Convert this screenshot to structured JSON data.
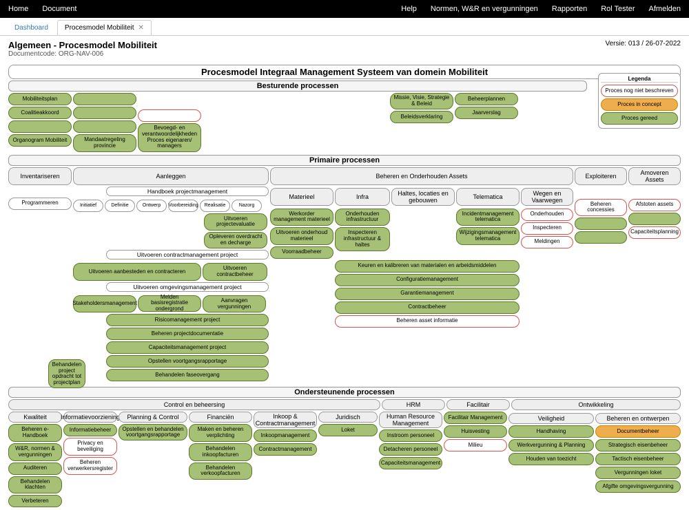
{
  "topnav": {
    "left": [
      "Home",
      "Document"
    ],
    "right": [
      "Help",
      "Normen, W&R en vergunningen",
      "Rapporten",
      "Rol Tester",
      "Afmelden"
    ]
  },
  "tabs": {
    "dashboard": "Dashboard",
    "active": "Procesmodel Mobiliteit"
  },
  "header": {
    "title": "Algemeen - Procesmodel Mobiliteit",
    "code": "Documentcode: ORG-NAV-006",
    "version": "Versie: 013 / 26-07-2022"
  },
  "diagram": {
    "main_title": "Procesmodel Integraal Management Systeem van domein Mobiliteit",
    "legend": {
      "title": "Legenda",
      "items": [
        {
          "label": "Proces nog niet beschreven",
          "style": "red"
        },
        {
          "label": "Proces in concept",
          "style": "orange"
        },
        {
          "label": "Proces gereed",
          "style": "green"
        }
      ]
    },
    "besturende": {
      "title": "Besturende processen",
      "col1": [
        "Mobiliteitsplan",
        "Coalitieakkoord",
        "",
        "Organogram Mobiliteit"
      ],
      "col2": [
        "",
        "",
        "",
        "Mandaatregeling provincie"
      ],
      "col3_red": "",
      "col3": "Bevoegd- en verantwoordelijkheden Proces eigenaren/ managers",
      "col4": [
        "Missie, Visie, Strategie & Beleid",
        "Beleidsverklaring"
      ],
      "col5": [
        "Beheerplannen",
        "Jaarverslag"
      ]
    },
    "primaire_title": "Primaire processen",
    "groups": {
      "inventariseren": "Inventariseren",
      "aanleggen": "Aanleggen",
      "beheren": "Beheren en Onderhouden Assets",
      "exploiteren": "Exploiteren",
      "amoveren": "Amoveren Assets"
    },
    "inventariseren_item": "Programmeren",
    "aanleggen": {
      "handboek": "Handboek projectmanagement",
      "phases": [
        "Initiatief",
        "Definitie",
        "Ontwerp",
        "Voorbereiding",
        "Realisatie",
        "Nazorg"
      ],
      "r1": [
        "Uitvoeren projectevaluatie"
      ],
      "r2": [
        "Opleveren overdracht en decharge"
      ],
      "contract_title": "Uitvoeren contractmanagement project",
      "contract_items": [
        "Uitvoeren aanbesteden en contracteren",
        "Uitvoeren contractbeheer"
      ],
      "omg_title": "Uitvoeren omgevingsmanagement project",
      "omg_items": [
        "Stakeholdersmanagement",
        "Melden basisregistratie ondergrond",
        "Aanvragen vergunningen"
      ],
      "bottom": [
        "Risicomanagement project",
        "Beheren projectdocumentatie",
        "Capaciteitsmanagement project",
        "Opstellen voortgangsrapportage",
        "Behandelen faseovergang"
      ],
      "side": "Behandelen project opdracht tot projectplan"
    },
    "beheren": {
      "cols": [
        "Materieel",
        "Infra",
        "Haltes, locaties en gebouwen",
        "Telematica",
        "Wegen en Vaarwegen"
      ],
      "materieel": [
        "Werkorder management materieel",
        "Uitvoeren onderhoud materieel",
        "Voorraadbeheer"
      ],
      "infra": [
        "Onderhouden infrastructuur",
        "Inspecteren infrastructuur & haltes"
      ],
      "telematica": [
        "Incidentmanagement telematica",
        "Wijzigingsmanagement telematica"
      ],
      "wegen": [
        "Onderhouden",
        "Inspecteren",
        "Meldingen"
      ],
      "wide": [
        "Keuren en kalibreren van materialen en arbeidsmiddelen",
        "Configuratiemanagement",
        "Garantiemanagement",
        "Contractbeheer"
      ],
      "wide_red": "Beheren asset informatie"
    },
    "exploiteren_items": [
      {
        "label": "Beheren concessies",
        "style": "red"
      }
    ],
    "amoveren_items": [
      {
        "label": "Afstoten assets",
        "style": "red"
      },
      {
        "label": "",
        "style": "green"
      },
      {
        "label": "Capaciteitsplanning",
        "style": "red"
      }
    ],
    "ondersteunende_title": "Ondersteunende processen",
    "ond_sections": {
      "control": "Control en beheersing",
      "hrm": "HRM",
      "facilitair": "Facilitair",
      "ontwikkeling": "Ontwikkeling"
    },
    "control": {
      "kwaliteit": {
        "title": "Kwaliteit",
        "items": [
          "Beheren e-Handboek",
          "W&R, normen & vergunningen",
          "Auditeren",
          "Behandelen klachten",
          "Verbeteren"
        ]
      },
      "info": {
        "title": "Informatievoorziening",
        "items": [
          {
            "label": "Informatiebeheer",
            "style": "green"
          },
          {
            "label": "Privacy en beveiliging",
            "style": "red"
          },
          {
            "label": "Beheren verwerkersregister",
            "style": "red"
          }
        ]
      },
      "planning": {
        "title": "Planning & Control",
        "items": [
          "Opstellen en behandelen voortgangsrapportage"
        ]
      },
      "fin": {
        "title": "Financiën",
        "items": [
          "Maken en beheren verplichting",
          "Behandelen inkoopfacturen",
          "Behandelen verkoopfacturen"
        ]
      },
      "inkoop": {
        "title": "Inkoop & Contractmanagement",
        "items": [
          "Inkoopmanagement",
          "Contractmanagement"
        ]
      },
      "juridisch": {
        "title": "Juridisch",
        "items": [
          "Loket"
        ]
      }
    },
    "hrm": {
      "title": "Human Resource Management",
      "items": [
        "Instroom personeel",
        "Detacheren personeel",
        "Capaciteitsmanagement"
      ]
    },
    "facilitair": {
      "items": [
        {
          "label": "Facilitair Management",
          "style": "green"
        },
        {
          "label": "Huisvesting",
          "style": "green"
        },
        {
          "label": "Milieu",
          "style": "red"
        }
      ]
    },
    "ontwikkeling": {
      "veiligheid": {
        "title": "Veiligheid",
        "items": [
          "Handhaving",
          "Werkvergunning & Planning",
          "Houden van toezicht"
        ]
      },
      "beheren": {
        "title": "Beheren en ontwerpen",
        "items": [
          {
            "label": "Documentbeheer",
            "style": "orange"
          },
          {
            "label": "Strategisch eisenbeheer",
            "style": "green"
          },
          {
            "label": "Tactisch eisenbeheer",
            "style": "green"
          },
          {
            "label": "Vergunningen loket",
            "style": "green"
          },
          {
            "label": "Afgifte omgevingsvergunning",
            "style": "green"
          }
        ]
      }
    }
  },
  "colors": {
    "green": "#a6c176",
    "green_border": "#5a7a2a",
    "red": "#d9534f",
    "orange": "#f0ad4e",
    "grey": "#eeeeee"
  }
}
